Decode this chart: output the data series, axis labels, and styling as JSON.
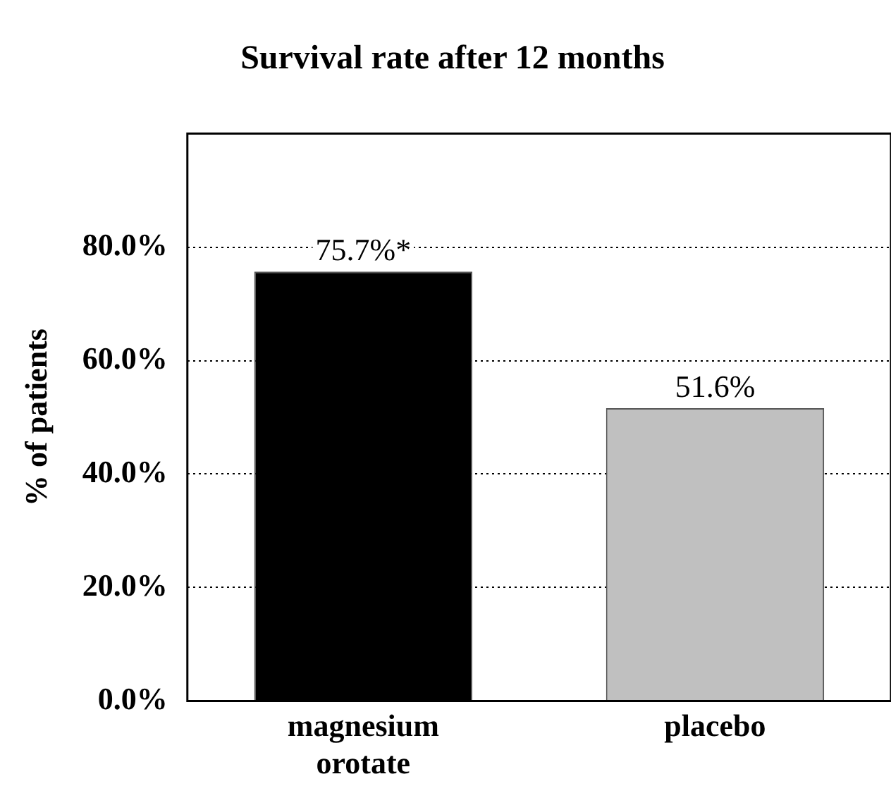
{
  "chart_data": {
    "type": "bar",
    "title": "Survival rate after 12 months",
    "ylabel": "% of patients",
    "categories": [
      "magnesium orotate",
      "placebo"
    ],
    "values": [
      75.7,
      51.6
    ],
    "colors": [
      "#000000",
      "#c0c0c0"
    ],
    "value_labels": [
      "75.7%*",
      "51.6%"
    ],
    "ylim": [
      0,
      100
    ],
    "yticks": [
      {
        "value": 0,
        "label": "0.0%"
      },
      {
        "value": 20,
        "label": "20.0%"
      },
      {
        "value": 40,
        "label": "40.0%"
      },
      {
        "value": 60,
        "label": "60.0%"
      },
      {
        "value": 80,
        "label": "80.0%"
      }
    ],
    "grid": "y",
    "legend": false
  }
}
